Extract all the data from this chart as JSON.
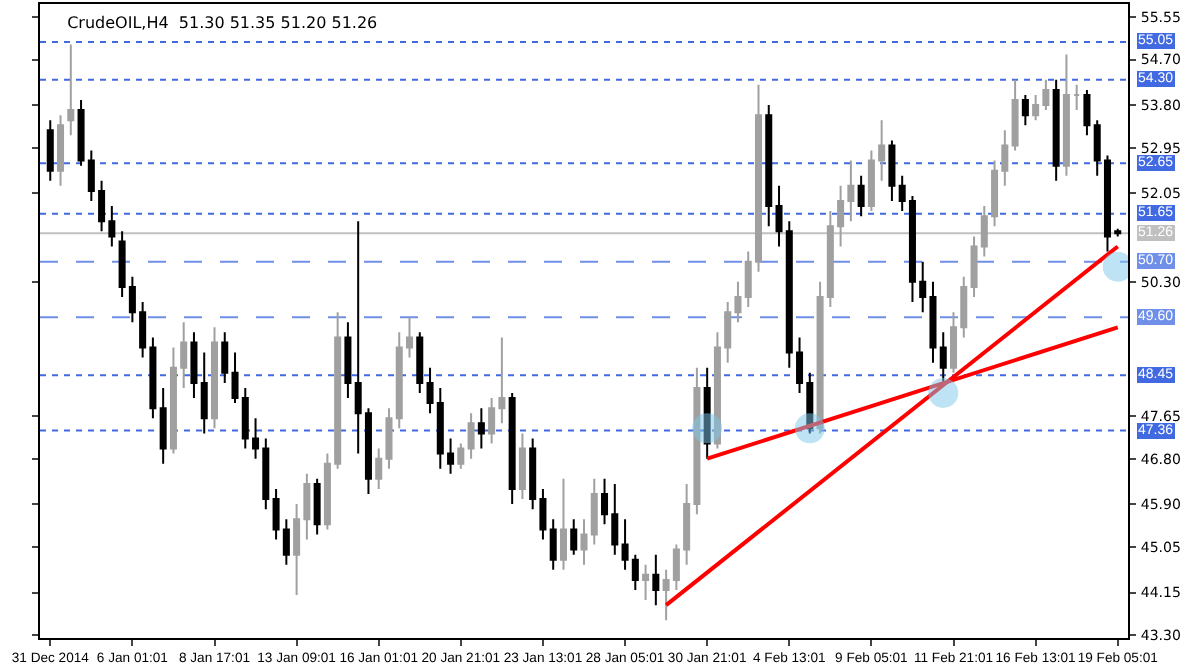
{
  "chart_data": {
    "type": "candlestick",
    "title": "CrudeOIL,H4  51.30 51.35 51.20 51.26",
    "categories": [
      "31 Dec 2014",
      null,
      null,
      null,
      null,
      null,
      null,
      null,
      "6 Jan 01:01",
      null,
      null,
      null,
      null,
      null,
      null,
      null,
      "8 Jan 17:01",
      null,
      null,
      null,
      null,
      null,
      null,
      null,
      "13 Jan 09:01",
      null,
      null,
      null,
      null,
      null,
      null,
      null,
      "16 Jan 01:01",
      null,
      null,
      null,
      null,
      null,
      null,
      null,
      "20 Jan 21:01",
      null,
      null,
      null,
      null,
      null,
      null,
      null,
      "23 Jan 13:01",
      null,
      null,
      null,
      null,
      null,
      null,
      null,
      "28 Jan 05:01",
      null,
      null,
      null,
      null,
      null,
      null,
      null,
      "30 Jan 21:01",
      null,
      null,
      null,
      null,
      null,
      null,
      null,
      "4 Feb 13:01",
      null,
      null,
      null,
      null,
      null,
      null,
      null,
      "9 Feb 05:01",
      null,
      null,
      null,
      null,
      null,
      null,
      null,
      "11 Feb 21:01",
      null,
      null,
      null,
      null,
      null,
      null,
      null,
      "16 Feb 13:01",
      null,
      null,
      null,
      null,
      null,
      null,
      null,
      "19 Feb 05:01"
    ],
    "ohlc": [
      [
        53.3,
        53.5,
        52.3,
        52.5
      ],
      [
        52.5,
        53.6,
        52.2,
        53.4
      ],
      [
        53.5,
        55.0,
        53.2,
        53.7
      ],
      [
        53.7,
        53.9,
        52.6,
        52.7
      ],
      [
        52.7,
        52.9,
        51.9,
        52.1
      ],
      [
        52.1,
        52.3,
        51.3,
        51.5
      ],
      [
        51.5,
        51.8,
        51.0,
        51.2
      ],
      [
        51.1,
        51.3,
        50.0,
        50.2
      ],
      [
        50.2,
        50.4,
        49.5,
        49.7
      ],
      [
        49.7,
        49.9,
        48.8,
        49.0
      ],
      [
        49.0,
        49.2,
        47.6,
        47.8
      ],
      [
        47.8,
        48.2,
        46.7,
        47.0
      ],
      [
        47.0,
        49.0,
        46.9,
        48.6
      ],
      [
        48.6,
        49.5,
        48.2,
        49.1
      ],
      [
        49.1,
        49.3,
        48.0,
        48.3
      ],
      [
        48.3,
        48.9,
        47.3,
        47.6
      ],
      [
        47.6,
        49.4,
        47.4,
        49.1
      ],
      [
        49.1,
        49.3,
        48.3,
        48.5
      ],
      [
        48.5,
        48.9,
        47.9,
        48.0
      ],
      [
        48.0,
        48.2,
        47.0,
        47.2
      ],
      [
        47.2,
        47.6,
        46.8,
        47.0
      ],
      [
        47.0,
        47.2,
        45.8,
        46.0
      ],
      [
        46.0,
        46.2,
        45.2,
        45.4
      ],
      [
        45.4,
        45.6,
        44.7,
        44.9
      ],
      [
        44.9,
        45.9,
        44.1,
        45.6
      ],
      [
        45.6,
        46.5,
        45.2,
        46.3
      ],
      [
        46.3,
        46.4,
        45.3,
        45.5
      ],
      [
        45.5,
        46.9,
        45.4,
        46.7
      ],
      [
        46.7,
        49.7,
        46.6,
        49.2
      ],
      [
        49.2,
        49.5,
        48.0,
        48.3
      ],
      [
        48.3,
        51.5,
        46.9,
        47.7
      ],
      [
        47.7,
        47.8,
        46.1,
        46.4
      ],
      [
        46.4,
        47.0,
        46.2,
        46.8
      ],
      [
        46.8,
        47.8,
        46.6,
        47.6
      ],
      [
        47.6,
        49.3,
        47.4,
        49.0
      ],
      [
        49.0,
        49.6,
        48.8,
        49.2
      ],
      [
        49.2,
        49.3,
        48.1,
        48.3
      ],
      [
        48.3,
        48.6,
        47.7,
        47.9
      ],
      [
        47.9,
        48.2,
        46.6,
        46.9
      ],
      [
        46.9,
        47.2,
        46.5,
        46.7
      ],
      [
        46.7,
        47.1,
        46.6,
        47.0
      ],
      [
        47.0,
        47.7,
        46.8,
        47.5
      ],
      [
        47.5,
        47.8,
        47.0,
        47.3
      ],
      [
        47.3,
        48.0,
        47.1,
        47.8
      ],
      [
        47.8,
        49.2,
        47.5,
        48.0
      ],
      [
        48.0,
        48.1,
        45.9,
        46.2
      ],
      [
        46.2,
        47.3,
        46.0,
        47.0
      ],
      [
        47.0,
        47.2,
        45.8,
        46.0
      ],
      [
        46.0,
        46.2,
        45.2,
        45.4
      ],
      [
        45.4,
        45.6,
        44.6,
        44.8
      ],
      [
        44.8,
        46.4,
        44.6,
        45.4
      ],
      [
        45.4,
        45.6,
        44.9,
        45.0
      ],
      [
        45.0,
        45.6,
        44.7,
        45.3
      ],
      [
        45.3,
        46.4,
        45.1,
        46.1
      ],
      [
        46.1,
        46.4,
        45.5,
        45.7
      ],
      [
        45.7,
        46.3,
        44.9,
        45.1
      ],
      [
        45.1,
        45.6,
        44.6,
        44.8
      ],
      [
        44.8,
        44.9,
        44.2,
        44.4
      ],
      [
        44.4,
        44.7,
        44.0,
        44.5
      ],
      [
        44.5,
        44.9,
        43.9,
        44.2
      ],
      [
        44.2,
        44.6,
        43.6,
        44.4
      ],
      [
        44.4,
        45.1,
        44.2,
        45.0
      ],
      [
        45.0,
        46.3,
        44.7,
        45.9
      ],
      [
        45.9,
        48.6,
        45.7,
        48.2
      ],
      [
        48.2,
        48.6,
        46.8,
        47.1
      ],
      [
        47.1,
        49.3,
        47.0,
        49.0
      ],
      [
        49.0,
        49.9,
        48.7,
        49.7
      ],
      [
        49.7,
        50.3,
        49.5,
        50.0
      ],
      [
        50.0,
        50.9,
        49.8,
        50.7
      ],
      [
        50.7,
        54.2,
        50.5,
        53.6
      ],
      [
        53.6,
        53.8,
        51.4,
        51.8
      ],
      [
        51.8,
        52.2,
        51.0,
        51.3
      ],
      [
        51.3,
        51.5,
        48.6,
        48.9
      ],
      [
        48.9,
        49.2,
        48.1,
        48.3
      ],
      [
        48.3,
        48.5,
        47.3,
        47.4
      ],
      [
        47.4,
        50.3,
        47.3,
        50.0
      ],
      [
        50.0,
        51.7,
        49.8,
        51.4
      ],
      [
        51.4,
        52.2,
        51.0,
        51.9
      ],
      [
        51.9,
        52.7,
        51.5,
        52.2
      ],
      [
        52.2,
        52.4,
        51.6,
        51.8
      ],
      [
        51.8,
        52.9,
        51.7,
        52.7
      ],
      [
        52.7,
        53.5,
        52.3,
        53.0
      ],
      [
        53.0,
        53.1,
        51.9,
        52.2
      ],
      [
        52.2,
        52.4,
        51.7,
        51.9
      ],
      [
        51.9,
        52.0,
        49.9,
        50.3
      ],
      [
        50.3,
        50.7,
        49.7,
        50.0
      ],
      [
        50.0,
        50.3,
        48.7,
        49.0
      ],
      [
        49.0,
        49.3,
        48.3,
        48.6
      ],
      [
        48.6,
        49.7,
        48.5,
        49.4
      ],
      [
        49.4,
        50.4,
        49.2,
        50.2
      ],
      [
        50.2,
        51.2,
        50.0,
        51.0
      ],
      [
        51.0,
        51.8,
        50.8,
        51.6
      ],
      [
        51.6,
        52.7,
        51.4,
        52.5
      ],
      [
        52.5,
        53.3,
        52.2,
        53.0
      ],
      [
        53.0,
        54.3,
        52.9,
        53.9
      ],
      [
        53.9,
        54.0,
        53.4,
        53.6
      ],
      [
        53.6,
        54.0,
        53.5,
        53.8
      ],
      [
        53.8,
        54.3,
        53.7,
        54.1
      ],
      [
        54.1,
        54.3,
        52.3,
        52.6
      ],
      [
        52.6,
        54.8,
        52.4,
        54.0
      ],
      [
        54.0,
        54.2,
        53.7,
        54.0
      ],
      [
        54.0,
        54.1,
        53.2,
        53.4
      ],
      [
        53.4,
        53.5,
        52.4,
        52.7
      ],
      [
        52.7,
        52.8,
        50.9,
        51.2
      ],
      [
        51.3,
        51.35,
        51.2,
        51.26
      ]
    ],
    "series": [
      {
        "type": "line",
        "color": "#ff0000",
        "values": [
          null,
          null,
          null,
          null,
          null,
          null,
          null,
          null,
          null,
          null,
          null,
          null,
          null,
          null,
          null,
          null,
          null,
          null,
          null,
          null,
          null,
          null,
          null,
          null,
          null,
          null,
          null,
          null,
          null,
          null,
          null,
          null,
          null,
          null,
          null,
          null,
          null,
          null,
          null,
          null,
          null,
          null,
          null,
          null,
          null,
          null,
          null,
          null,
          null,
          null,
          null,
          null,
          null,
          null,
          null,
          null,
          null,
          null,
          null,
          null,
          43.9,
          null,
          null,
          null,
          null,
          null,
          null,
          null,
          null,
          null,
          null,
          null,
          null,
          null,
          null,
          null,
          null,
          null,
          null,
          null,
          null,
          null,
          null,
          null,
          null,
          null,
          null,
          null,
          null,
          null,
          null,
          null,
          null,
          null,
          null,
          null,
          null,
          null,
          null,
          null,
          null,
          null,
          null,
          null,
          51.0
        ]
      },
      {
        "type": "line",
        "color": "#ff0000",
        "values": [
          null,
          null,
          null,
          null,
          null,
          null,
          null,
          null,
          null,
          null,
          null,
          null,
          null,
          null,
          null,
          null,
          null,
          null,
          null,
          null,
          null,
          null,
          null,
          null,
          null,
          null,
          null,
          null,
          null,
          null,
          null,
          null,
          null,
          null,
          null,
          null,
          null,
          null,
          null,
          null,
          null,
          null,
          null,
          null,
          null,
          null,
          null,
          null,
          null,
          null,
          null,
          null,
          null,
          null,
          null,
          null,
          null,
          null,
          null,
          null,
          null,
          null,
          null,
          null,
          46.8,
          null,
          null,
          null,
          null,
          null,
          null,
          null,
          null,
          null,
          null,
          null,
          null,
          null,
          null,
          null,
          null,
          null,
          null,
          null,
          null,
          null,
          null,
          null,
          null,
          null,
          null,
          null,
          null,
          null,
          null,
          null,
          null,
          null,
          null,
          null,
          null,
          null,
          null,
          null,
          49.4
        ]
      },
      {
        "type": "scatter",
        "color": "#7ec8ea",
        "marker": "circle",
        "values": [
          null,
          null,
          null,
          null,
          null,
          null,
          null,
          null,
          null,
          null,
          null,
          null,
          null,
          null,
          null,
          null,
          null,
          null,
          null,
          null,
          null,
          null,
          null,
          null,
          null,
          null,
          null,
          null,
          null,
          null,
          null,
          null,
          null,
          null,
          null,
          null,
          null,
          null,
          null,
          null,
          null,
          null,
          null,
          null,
          null,
          null,
          null,
          null,
          null,
          null,
          null,
          null,
          null,
          null,
          null,
          null,
          null,
          null,
          null,
          null,
          null,
          null,
          null,
          null,
          47.4,
          null,
          null,
          null,
          null,
          null,
          null,
          null,
          null,
          null,
          47.4,
          null,
          null,
          null,
          null,
          null,
          null,
          null,
          null,
          null,
          null,
          null,
          null,
          48.1,
          null,
          null,
          null,
          null,
          null,
          null,
          null,
          null,
          null,
          null,
          null,
          null,
          null,
          null,
          null,
          null,
          50.6
        ]
      }
    ],
    "ylim": [
      43.25,
      55.8
    ],
    "yticks": [
      {
        "value": 55.55,
        "label": "55.55"
      },
      {
        "value": 54.7,
        "label": "54.70"
      },
      {
        "value": 53.8,
        "label": "53.80"
      },
      {
        "value": 52.95,
        "label": "52.95"
      },
      {
        "value": 52.05,
        "label": "52.05"
      },
      {
        "value": 50.3,
        "label": "50.30"
      },
      {
        "value": 47.65,
        "label": "47.65"
      },
      {
        "value": 46.8,
        "label": "46.80"
      },
      {
        "value": 45.9,
        "label": "45.90"
      },
      {
        "value": 45.05,
        "label": "45.05"
      },
      {
        "value": 44.15,
        "label": "44.15"
      },
      {
        "value": 43.3,
        "label": "43.30"
      }
    ],
    "ref_lines": [
      {
        "axis": "y",
        "value": 55.05,
        "label": "55.05",
        "color": "#4169e1",
        "line_style": "dotted"
      },
      {
        "axis": "y",
        "value": 54.3,
        "label": "54.30",
        "color": "#4169e1",
        "line_style": "dotted"
      },
      {
        "axis": "y",
        "value": 52.65,
        "label": "52.65",
        "color": "#4169e1",
        "line_style": "dotted"
      },
      {
        "axis": "y",
        "value": 51.65,
        "label": "51.65",
        "color": "#4169e1",
        "line_style": "dotted"
      },
      {
        "axis": "y",
        "value": 51.26,
        "label": "51.26",
        "color": "#c0c0c0",
        "line_style": "solid"
      },
      {
        "axis": "y",
        "value": 50.7,
        "label": "50.70",
        "color": "#6f8fe8",
        "line_style": "dashed"
      },
      {
        "axis": "y",
        "value": 49.6,
        "label": "49.60",
        "color": "#6f8fe8",
        "line_style": "dashed"
      },
      {
        "axis": "y",
        "value": 48.45,
        "label": "48.45",
        "color": "#4169e1",
        "line_style": "dotted"
      },
      {
        "axis": "y",
        "value": 47.36,
        "label": "47.36",
        "color": "#4169e1",
        "line_style": "dotted"
      }
    ],
    "grid": false
  }
}
